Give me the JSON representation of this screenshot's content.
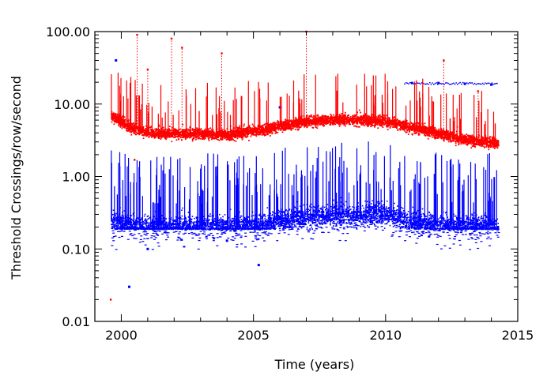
{
  "chart_data": {
    "type": "scatter",
    "title": "",
    "xlabel": "Time (years)",
    "ylabel": "Threshold Crossings/row/second",
    "xlim": [
      1999.0,
      2015.0
    ],
    "ylim": [
      0.01,
      100.0
    ],
    "yscale": "log",
    "x_ticks": [
      2000,
      2005,
      2010,
      2015
    ],
    "x_tick_labels": [
      "2000",
      "2005",
      "2010",
      "2015"
    ],
    "y_ticks": [
      0.01,
      0.1,
      1,
      10,
      100
    ],
    "y_tick_labels": [
      "0.01",
      "0.10",
      "1.00",
      "10.00",
      "100.00"
    ],
    "x_range_data": [
      1999.6,
      2014.25
    ],
    "series": [
      {
        "name": "red",
        "color": "#ff0000",
        "trend": {
          "x": [
            1999.6,
            1999.9,
            2000.3,
            2000.8,
            2001.5,
            2002.5,
            2003.5,
            2004.0,
            2004.5,
            2005.0,
            2005.5,
            2006.0,
            2006.5,
            2007.0,
            2007.5,
            2008.0,
            2008.5,
            2009.0,
            2009.5,
            2010.0,
            2010.5,
            2011.0,
            2011.5,
            2012.0,
            2012.5,
            2013.0,
            2013.5,
            2014.0,
            2014.25
          ],
          "y": [
            7.0,
            6.0,
            4.8,
            4.2,
            4.0,
            4.0,
            3.9,
            3.8,
            4.1,
            4.3,
            4.5,
            5.0,
            5.5,
            5.8,
            6.0,
            6.1,
            6.2,
            6.2,
            6.0,
            5.8,
            5.3,
            4.8,
            4.4,
            4.0,
            3.6,
            3.3,
            3.1,
            3.0,
            3.0
          ]
        },
        "outliers": [
          {
            "x": 1999.6,
            "y": 0.02
          },
          {
            "x": 2000.5,
            "y": 1.7
          },
          {
            "x": 2000.6,
            "y": 90
          },
          {
            "x": 2001.0,
            "y": 30
          },
          {
            "x": 2001.9,
            "y": 80
          },
          {
            "x": 2002.3,
            "y": 60
          },
          {
            "x": 2003.8,
            "y": 50
          },
          {
            "x": 2007.0,
            "y": 100
          },
          {
            "x": 2012.2,
            "y": 40
          },
          {
            "x": 2013.5,
            "y": 15
          }
        ]
      },
      {
        "name": "blue",
        "color": "#0000ff",
        "trend": {
          "x": [
            1999.6,
            2000.0,
            2001.0,
            2002.0,
            2003.0,
            2004.0,
            2005.0,
            2005.5,
            2006.0,
            2006.5,
            2007.0,
            2008.0,
            2009.0,
            2009.5,
            2010.0,
            2010.5,
            2011.0,
            2012.0,
            2013.0,
            2014.0,
            2014.25
          ],
          "y": [
            0.24,
            0.22,
            0.21,
            0.21,
            0.21,
            0.21,
            0.21,
            0.22,
            0.25,
            0.27,
            0.28,
            0.29,
            0.3,
            0.32,
            0.31,
            0.27,
            0.24,
            0.22,
            0.21,
            0.21,
            0.2
          ],
          "floor": 0.19
        },
        "outliers": [
          {
            "x": 1999.8,
            "y": 40
          },
          {
            "x": 2000.3,
            "y": 0.03
          },
          {
            "x": 2001.0,
            "y": 0.1
          },
          {
            "x": 2004.0,
            "y": 0.13
          },
          {
            "x": 2005.2,
            "y": 0.06
          },
          {
            "x": 2006.0,
            "y": 9
          },
          {
            "x": 2011.0,
            "y": 19.5
          },
          {
            "x": 2012.0,
            "y": 19.5
          },
          {
            "x": 2013.0,
            "y": 19.0
          },
          {
            "x": 2014.0,
            "y": 18.5
          }
        ]
      }
    ]
  }
}
